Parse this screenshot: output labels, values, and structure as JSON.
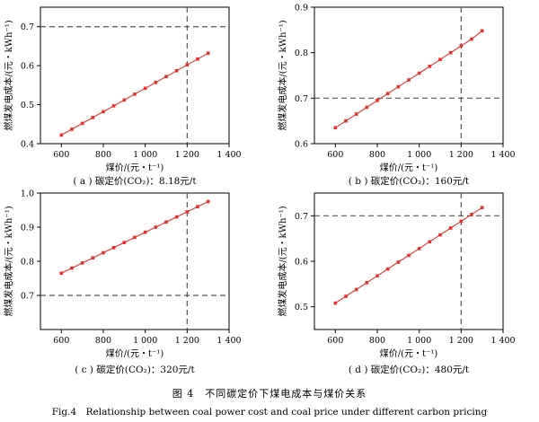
{
  "figure": {
    "caption_cn": "图 4　不同碳定价下煤电成本与煤价关系",
    "caption_en": "Fig.4　Relationship between coal power cost and coal price under different carbon pricing"
  },
  "colors": {
    "series": "#e8302a",
    "reference_line": "#555555",
    "axis": "#000000"
  },
  "chart_data": [
    {
      "type": "line",
      "panel_caption": "( a ) 碳定价(CO₂)：8.18元/t",
      "xlabel": "煤价/(元・t⁻¹)",
      "ylabel": "燃煤发电成本/(元・kWh⁻¹)",
      "xlim": [
        500,
        1400
      ],
      "ylim": [
        0.4,
        0.75
      ],
      "xticks": [
        600,
        800,
        1000,
        1200,
        1400
      ],
      "xtick_labels": [
        "600",
        "800",
        "1 000",
        "1 200",
        "1 400"
      ],
      "yticks": [
        0.4,
        0.5,
        0.6,
        0.7
      ],
      "ytick_labels": [
        "0.4",
        "0.5",
        "0.6",
        "0.7"
      ],
      "grid": false,
      "reference_lines": {
        "x": 1200,
        "y": 0.7
      },
      "series": [
        {
          "x": [
            600,
            650,
            700,
            750,
            800,
            850,
            900,
            950,
            1000,
            1050,
            1100,
            1150,
            1200,
            1250,
            1300
          ],
          "y": [
            0.422,
            0.437,
            0.452,
            0.467,
            0.482,
            0.497,
            0.512,
            0.527,
            0.542,
            0.557,
            0.572,
            0.587,
            0.602,
            0.617,
            0.632
          ]
        }
      ]
    },
    {
      "type": "line",
      "panel_caption": "( b ) 碳定价(CO₂)：160元/t",
      "xlabel": "煤价/(元・t⁻¹)",
      "ylabel": "燃煤发电成本/(元・kWh⁻¹)",
      "xlim": [
        500,
        1400
      ],
      "ylim": [
        0.6,
        0.9
      ],
      "xticks": [
        600,
        800,
        1000,
        1200,
        1400
      ],
      "xtick_labels": [
        "600",
        "800",
        "1 000",
        "1 200",
        "1 400"
      ],
      "yticks": [
        0.6,
        0.7,
        0.8,
        0.9
      ],
      "ytick_labels": [
        "0.6",
        "0.7",
        "0.8",
        "0.9"
      ],
      "grid": false,
      "reference_lines": {
        "x": 1200,
        "y": 0.7
      },
      "series": [
        {
          "x": [
            600,
            650,
            700,
            750,
            800,
            850,
            900,
            950,
            1000,
            1050,
            1100,
            1150,
            1200,
            1250,
            1300
          ],
          "y": [
            0.635,
            0.65,
            0.665,
            0.68,
            0.695,
            0.71,
            0.725,
            0.74,
            0.755,
            0.77,
            0.785,
            0.8,
            0.815,
            0.83,
            0.848
          ]
        }
      ]
    },
    {
      "type": "line",
      "panel_caption": "( c ) 碳定价(CO₂)：320元/t",
      "xlabel": "煤价/(元・t⁻¹)",
      "ylabel": "燃煤发电成本/(元・kWh⁻¹)",
      "xlim": [
        500,
        1400
      ],
      "ylim": [
        0.6,
        1.0
      ],
      "xticks": [
        600,
        800,
        1000,
        1200,
        1400
      ],
      "xtick_labels": [
        "600",
        "800",
        "1 000",
        "1 200",
        "1 400"
      ],
      "yticks": [
        0.7,
        0.8,
        0.9,
        1.0
      ],
      "ytick_labels": [
        "0.7",
        "0.8",
        "0.9",
        "1.0"
      ],
      "grid": false,
      "reference_lines": {
        "x": 1200,
        "y": 0.7
      },
      "series": [
        {
          "x": [
            600,
            650,
            700,
            750,
            800,
            850,
            900,
            950,
            1000,
            1050,
            1100,
            1150,
            1200,
            1250,
            1300
          ],
          "y": [
            0.765,
            0.78,
            0.795,
            0.81,
            0.825,
            0.84,
            0.855,
            0.87,
            0.885,
            0.9,
            0.915,
            0.93,
            0.945,
            0.96,
            0.975
          ]
        }
      ]
    },
    {
      "type": "line",
      "panel_caption": "( d ) 碳定价(CO₂)：480元/t",
      "xlabel": "煤价/(元・t⁻¹)",
      "ylabel": "燃煤发电成本/(元・kWh⁻¹)",
      "xlim": [
        500,
        1400
      ],
      "ylim": [
        0.45,
        0.75
      ],
      "xticks": [
        600,
        800,
        1000,
        1200,
        1400
      ],
      "xtick_labels": [
        "600",
        "800",
        "1 000",
        "1 200",
        "1 400"
      ],
      "yticks": [
        0.5,
        0.6,
        0.7
      ],
      "ytick_labels": [
        "0.5",
        "0.6",
        "0.7"
      ],
      "grid": false,
      "reference_lines": {
        "x": 1200,
        "y": 0.7
      },
      "series": [
        {
          "x": [
            600,
            650,
            700,
            750,
            800,
            850,
            900,
            950,
            1000,
            1050,
            1100,
            1150,
            1200,
            1250,
            1300
          ],
          "y": [
            0.508,
            0.523,
            0.538,
            0.553,
            0.568,
            0.583,
            0.598,
            0.613,
            0.628,
            0.643,
            0.658,
            0.673,
            0.688,
            0.703,
            0.718
          ]
        }
      ]
    }
  ]
}
